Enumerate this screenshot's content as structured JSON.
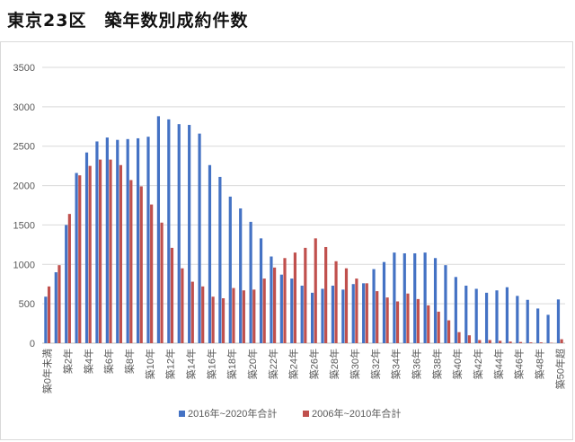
{
  "title": "東京23区　築年数別成約件数",
  "colors": {
    "series1": "#4472C4",
    "series2": "#C0504D",
    "grid": "#d9d9d9",
    "axis": "#bfbfbf"
  },
  "chart_data": {
    "type": "bar",
    "title": "東京23区　築年数別成約件数",
    "xlabel": "",
    "ylabel": "",
    "ylim": [
      0,
      3500
    ],
    "yticks": [
      0,
      500,
      1000,
      1500,
      2000,
      2500,
      3000,
      3500
    ],
    "grid": true,
    "legend_position": "bottom",
    "categories": [
      "築0年未満",
      "築1年",
      "築2年",
      "築3年",
      "築4年",
      "築5年",
      "築6年",
      "築7年",
      "築8年",
      "築9年",
      "築10年",
      "築11年",
      "築12年",
      "築13年",
      "築14年",
      "築15年",
      "築16年",
      "築17年",
      "築18年",
      "築19年",
      "築20年",
      "築21年",
      "築22年",
      "築23年",
      "築24年",
      "築25年",
      "築26年",
      "築27年",
      "築28年",
      "築29年",
      "築30年",
      "築31年",
      "築32年",
      "築33年",
      "築34年",
      "築35年",
      "築36年",
      "築37年",
      "築38年",
      "築39年",
      "築40年",
      "築41年",
      "築42年",
      "築43年",
      "築44年",
      "築45年",
      "築46年",
      "築47年",
      "築48年",
      "築49年",
      "築50年超"
    ],
    "category_labels": [
      "築0年未満",
      "",
      "築2年",
      "",
      "築4年",
      "",
      "築6年",
      "",
      "築8年",
      "",
      "築10年",
      "",
      "築12年",
      "",
      "築14年",
      "",
      "築16年",
      "",
      "築18年",
      "",
      "築20年",
      "",
      "築22年",
      "",
      "築24年",
      "",
      "築26年",
      "",
      "築28年",
      "",
      "築30年",
      "",
      "築32年",
      "",
      "築34年",
      "",
      "築36年",
      "",
      "築38年",
      "",
      "築40年",
      "",
      "築42年",
      "",
      "築44年",
      "",
      "築46年",
      "",
      "築48年",
      "",
      "築50年超"
    ],
    "series": [
      {
        "name": "2016年~2020年合計",
        "values": [
          590,
          900,
          1500,
          2160,
          2420,
          2560,
          2610,
          2580,
          2590,
          2600,
          2620,
          2880,
          2840,
          2780,
          2770,
          2660,
          2260,
          2110,
          1860,
          1710,
          1540,
          1330,
          1100,
          870,
          820,
          730,
          640,
          690,
          730,
          680,
          750,
          760,
          940,
          1030,
          1150,
          1140,
          1140,
          1150,
          1080,
          990,
          840,
          730,
          690,
          640,
          670,
          710,
          600,
          550,
          440,
          360,
          555
        ]
      },
      {
        "name": "2006年~2010年合計",
        "values": [
          720,
          990,
          1640,
          2130,
          2250,
          2330,
          2330,
          2260,
          2070,
          1990,
          1760,
          1530,
          1210,
          950,
          780,
          720,
          590,
          570,
          700,
          670,
          680,
          820,
          960,
          1080,
          1150,
          1210,
          1330,
          1220,
          1040,
          950,
          820,
          760,
          660,
          580,
          530,
          630,
          560,
          480,
          400,
          290,
          140,
          100,
          40,
          40,
          30,
          20,
          15,
          10,
          10,
          5,
          50
        ]
      }
    ]
  }
}
